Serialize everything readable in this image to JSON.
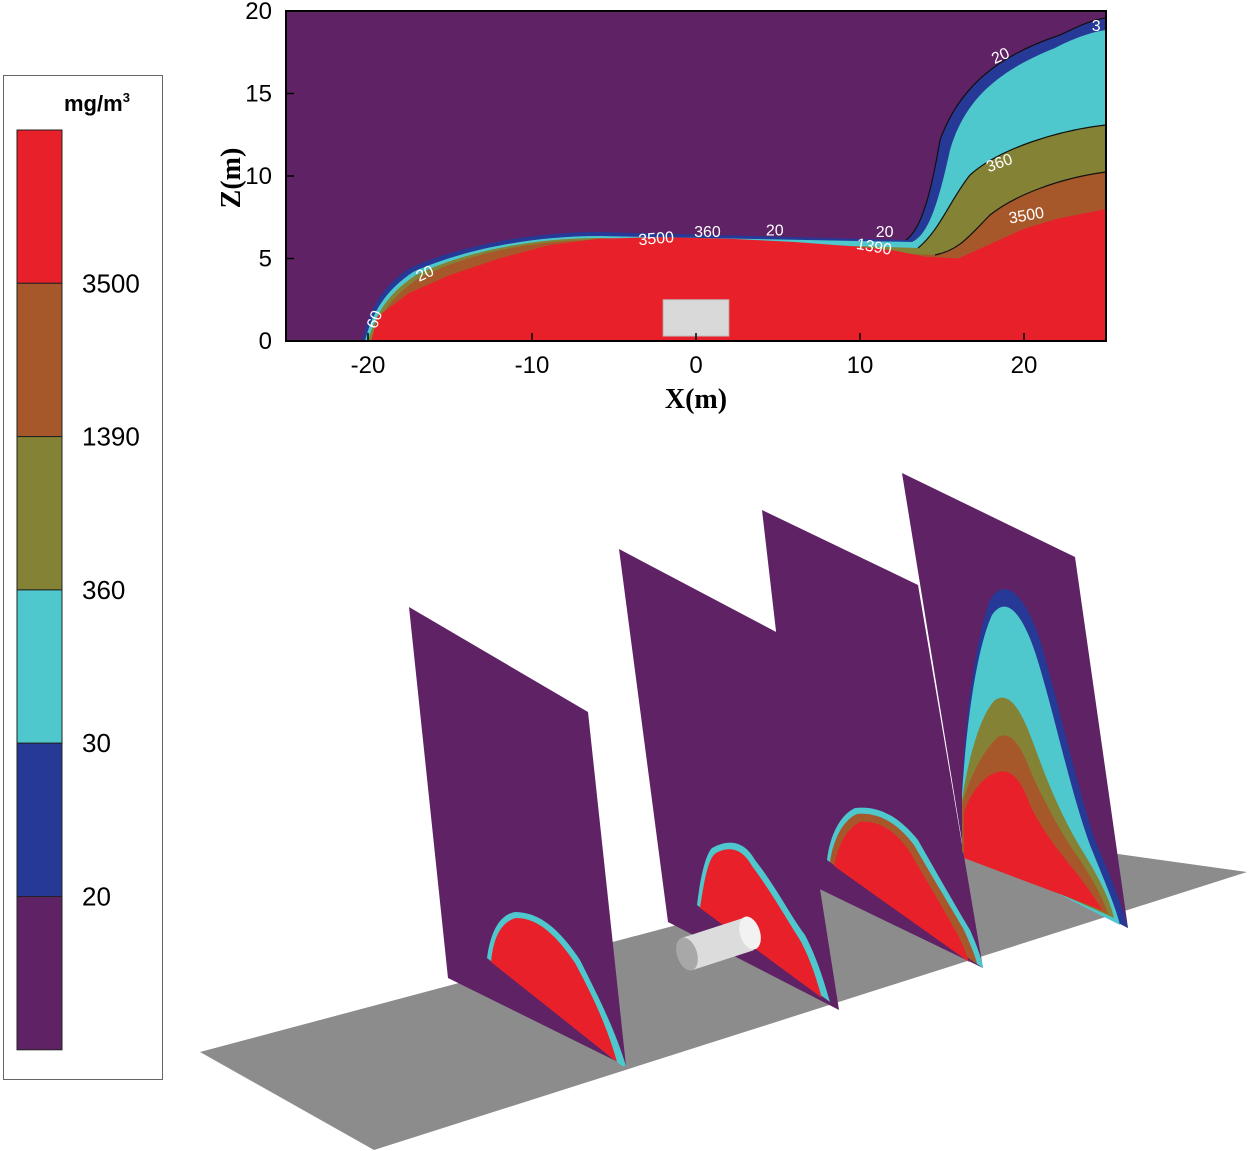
{
  "figure": {
    "legend": {
      "unit_base": "mg/m",
      "unit_exp": "3",
      "levels": [
        "3500",
        "1390",
        "360",
        "30",
        "20"
      ],
      "colors": [
        "#e8202a",
        "#a7582a",
        "#848234",
        "#4ec7cd",
        "#263996",
        "#5e2265"
      ]
    },
    "surface": "#8c8c8c",
    "building": "#d9d9d9"
  },
  "chart_data": {
    "type": "heatmap",
    "title": "",
    "xlabel": "X(m)",
    "ylabel": "Z(m)",
    "xlim": [
      -25,
      25
    ],
    "ylim": [
      0,
      20
    ],
    "xticks": [
      -20,
      -10,
      0,
      10,
      20
    ],
    "yticks": [
      0,
      5,
      10,
      15,
      20
    ],
    "contour_levels_mg_m3": [
      20,
      30,
      360,
      1390,
      3500
    ],
    "contour_labels": [
      "60",
      "20",
      "3500",
      "360",
      "20",
      "20",
      "1390",
      "20",
      "360",
      "3500",
      "3"
    ],
    "regions": [
      {
        "level": "3500",
        "color": "#e8202a",
        "outline": [
          [
            -19.8,
            0
          ],
          [
            -19.4,
            1.5
          ],
          [
            -17.5,
            2.9
          ],
          [
            -15,
            4
          ],
          [
            -12,
            5
          ],
          [
            -9,
            5.8
          ],
          [
            -6,
            6.2
          ],
          [
            -2,
            6.3
          ],
          [
            2,
            6.2
          ],
          [
            6,
            6.0
          ],
          [
            10,
            5.7
          ],
          [
            12,
            5.5
          ],
          [
            14,
            5.1
          ],
          [
            16,
            5.0
          ],
          [
            18,
            5.9
          ],
          [
            20,
            6.8
          ],
          [
            22,
            7.4
          ],
          [
            25,
            8.0
          ],
          [
            25,
            0
          ]
        ]
      }
    ],
    "building": {
      "xmin": -2,
      "xmax": 2,
      "zmin": 0.3,
      "zmax": 2.5,
      "label": ""
    }
  }
}
